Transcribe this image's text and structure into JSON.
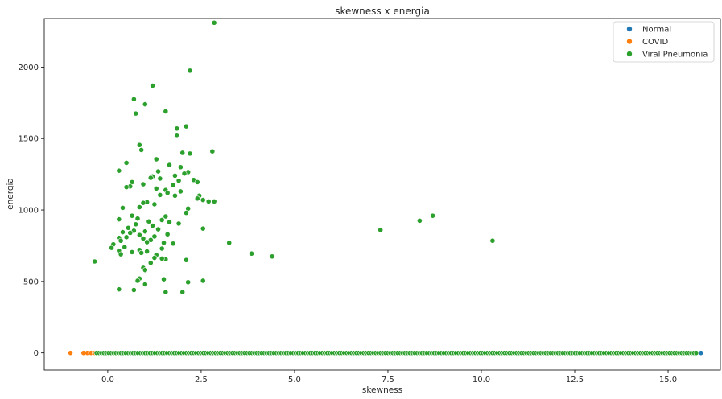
{
  "chart_data": {
    "type": "scatter",
    "title": "skewness x energia",
    "xlabel": "skewness",
    "ylabel": "energia",
    "xlim": [
      -1.7,
      16.4
    ],
    "ylim": [
      -120,
      2340
    ],
    "x_ticks": [
      0.0,
      2.5,
      5.0,
      7.5,
      10.0,
      12.5,
      15.0
    ],
    "x_tick_labels": [
      "0.0",
      "2.5",
      "5.0",
      "7.5",
      "10.0",
      "12.5",
      "15.0"
    ],
    "y_ticks": [
      0,
      500,
      1000,
      1500,
      2000
    ],
    "y_tick_labels": [
      "0",
      "500",
      "1000",
      "1500",
      "2000"
    ],
    "grid": false,
    "legend_position": "top-right",
    "series": [
      {
        "name": "Normal",
        "color": "#1f77b4",
        "points": [
          [
            15.88,
            0
          ]
        ]
      },
      {
        "name": "COVID",
        "color": "#ff7f0e",
        "points": [
          [
            -1.0,
            0
          ],
          [
            -0.65,
            0
          ],
          [
            -0.55,
            0
          ],
          [
            -0.45,
            0
          ],
          [
            -0.35,
            0
          ],
          [
            15.75,
            0
          ]
        ]
      },
      {
        "name": "Viral Pneumonia",
        "color": "#2ca02c",
        "zero_band": {
          "x_start": -0.3,
          "x_end": 15.8,
          "step": 0.065,
          "y": 0
        },
        "points": [
          [
            2.85,
            2310
          ],
          [
            2.2,
            1975
          ],
          [
            1.2,
            1870
          ],
          [
            0.7,
            1775
          ],
          [
            1.0,
            1740
          ],
          [
            1.55,
            1690
          ],
          [
            0.75,
            1675
          ],
          [
            2.1,
            1585
          ],
          [
            1.85,
            1570
          ],
          [
            1.85,
            1525
          ],
          [
            0.85,
            1455
          ],
          [
            0.9,
            1420
          ],
          [
            2.8,
            1410
          ],
          [
            2.0,
            1400
          ],
          [
            2.2,
            1395
          ],
          [
            1.3,
            1355
          ],
          [
            0.5,
            1330
          ],
          [
            1.65,
            1315
          ],
          [
            1.95,
            1300
          ],
          [
            0.3,
            1275
          ],
          [
            1.35,
            1270
          ],
          [
            2.15,
            1265
          ],
          [
            2.05,
            1255
          ],
          [
            1.8,
            1240
          ],
          [
            1.2,
            1235
          ],
          [
            1.15,
            1225
          ],
          [
            1.4,
            1220
          ],
          [
            2.3,
            1210
          ],
          [
            1.9,
            1205
          ],
          [
            0.65,
            1195
          ],
          [
            2.4,
            1195
          ],
          [
            0.95,
            1180
          ],
          [
            1.75,
            1175
          ],
          [
            0.6,
            1165
          ],
          [
            0.5,
            1160
          ],
          [
            1.3,
            1150
          ],
          [
            1.55,
            1140
          ],
          [
            1.95,
            1130
          ],
          [
            1.6,
            1120
          ],
          [
            2.45,
            1100
          ],
          [
            1.4,
            1105
          ],
          [
            1.8,
            1100
          ],
          [
            2.4,
            1080
          ],
          [
            2.55,
            1070
          ],
          [
            2.7,
            1060
          ],
          [
            2.85,
            1060
          ],
          [
            1.05,
            1055
          ],
          [
            0.95,
            1050
          ],
          [
            1.25,
            1040
          ],
          [
            0.85,
            1020
          ],
          [
            0.4,
            1015
          ],
          [
            2.15,
            1010
          ],
          [
            2.1,
            980
          ],
          [
            0.65,
            960
          ],
          [
            1.55,
            955
          ],
          [
            0.8,
            940
          ],
          [
            0.3,
            935
          ],
          [
            1.45,
            930
          ],
          [
            1.1,
            920
          ],
          [
            1.65,
            915
          ],
          [
            1.9,
            905
          ],
          [
            0.75,
            900
          ],
          [
            1.2,
            890
          ],
          [
            0.55,
            875
          ],
          [
            2.55,
            870
          ],
          [
            1.35,
            865
          ],
          [
            0.7,
            855
          ],
          [
            1.0,
            850
          ],
          [
            0.4,
            845
          ],
          [
            0.6,
            840
          ],
          [
            1.6,
            830
          ],
          [
            0.85,
            825
          ],
          [
            1.25,
            815
          ],
          [
            0.5,
            810
          ],
          [
            0.3,
            805
          ],
          [
            0.95,
            800
          ],
          [
            1.15,
            790
          ],
          [
            0.35,
            785
          ],
          [
            1.05,
            775
          ],
          [
            1.5,
            770
          ],
          [
            3.25,
            770
          ],
          [
            1.75,
            765
          ],
          [
            0.15,
            760
          ],
          [
            0.1,
            735
          ],
          [
            1.45,
            730
          ],
          [
            0.45,
            740
          ],
          [
            0.85,
            720
          ],
          [
            0.3,
            715
          ],
          [
            1.05,
            710
          ],
          [
            0.65,
            705
          ],
          [
            0.9,
            700
          ],
          [
            3.85,
            695
          ],
          [
            0.35,
            690
          ],
          [
            1.3,
            685
          ],
          [
            4.4,
            675
          ],
          [
            1.25,
            665
          ],
          [
            1.55,
            655
          ],
          [
            1.45,
            660
          ],
          [
            2.1,
            650
          ],
          [
            -0.35,
            640
          ],
          [
            1.15,
            630
          ],
          [
            0.95,
            595
          ],
          [
            1.0,
            580
          ],
          [
            0.85,
            520
          ],
          [
            1.5,
            515
          ],
          [
            2.55,
            505
          ],
          [
            0.8,
            505
          ],
          [
            1.0,
            480
          ],
          [
            2.15,
            495
          ],
          [
            0.3,
            445
          ],
          [
            0.7,
            440
          ],
          [
            1.55,
            425
          ],
          [
            2.0,
            425
          ],
          [
            7.3,
            860
          ],
          [
            8.35,
            925
          ],
          [
            8.7,
            960
          ],
          [
            10.3,
            785
          ]
        ]
      }
    ]
  }
}
